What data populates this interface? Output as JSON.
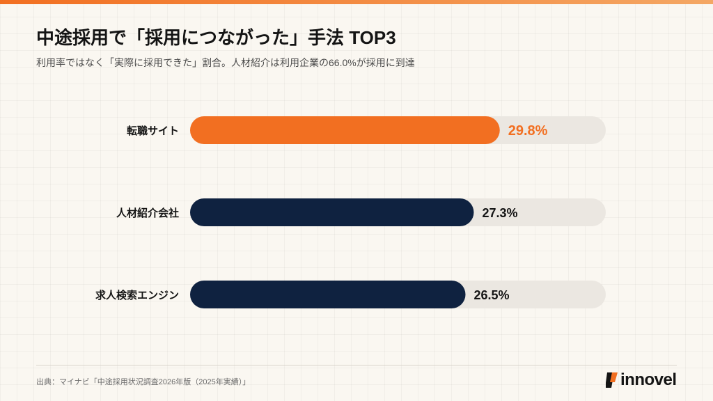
{
  "header": {
    "title": "中途採用で「採用につながった」手法 TOP3",
    "subtitle": "利用率ではなく「実際に採用できた」割合。人材紹介は利用企業の66.0%が採用に到達"
  },
  "colors": {
    "highlight": "#f26f21",
    "bar": "#0f2240",
    "track": "#ebe7e1",
    "label": "#141414"
  },
  "chart_data": {
    "type": "bar",
    "orientation": "horizontal",
    "categories": [
      "転職サイト",
      "人材紹介会社",
      "求人検索エンジン"
    ],
    "values": [
      29.8,
      27.3,
      26.5
    ],
    "value_labels": [
      "29.8%",
      "27.3%",
      "26.5%"
    ],
    "highlight_index": 0,
    "xlim": [
      0,
      40
    ],
    "grid": false,
    "legend": "none"
  },
  "footer": {
    "source": "出典：マイナビ「中途採用状況調査2026年版（2025年実績）」",
    "logo_text": "innovel"
  }
}
